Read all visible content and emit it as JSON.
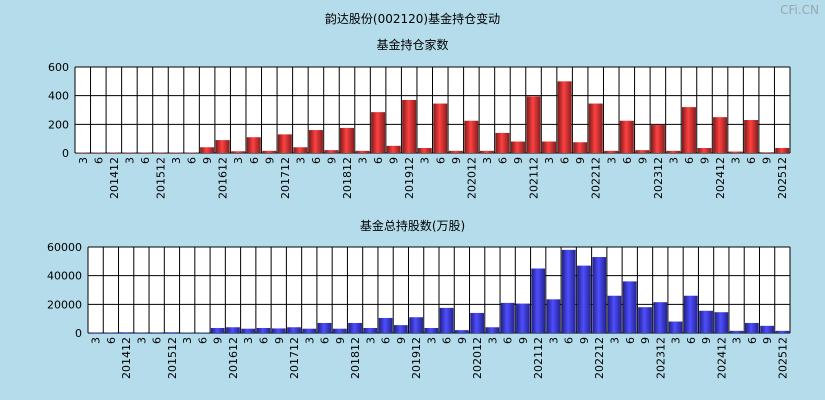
{
  "page": {
    "title": "韵达股份(002120)基金持仓变动",
    "watermark": "CFi.CN"
  },
  "chart_data": [
    {
      "type": "bar",
      "title": "基金持仓家数",
      "ylim": [
        0,
        600
      ],
      "yticks": [
        0,
        200,
        400,
        600
      ],
      "grid": true,
      "color": "#e03030",
      "categories": [
        "3",
        "6",
        "201412",
        "3",
        "6",
        "201512",
        "3",
        "6",
        "9",
        "201612",
        "3",
        "6",
        "9",
        "201712",
        "3",
        "6",
        "9",
        "201812",
        "3",
        "6",
        "9",
        "201912",
        "3",
        "6",
        "9",
        "202012",
        "3",
        "6",
        "9",
        "202112",
        "3",
        "6",
        "9",
        "202212",
        "3",
        "6",
        "9",
        "202312",
        "3",
        "6",
        "9",
        "202412",
        "3",
        "6",
        "9",
        "202512"
      ],
      "values": [
        3,
        3,
        4,
        3,
        3,
        4,
        3,
        3,
        40,
        90,
        12,
        110,
        15,
        130,
        40,
        160,
        20,
        175,
        15,
        285,
        50,
        370,
        35,
        345,
        15,
        225,
        15,
        140,
        80,
        395,
        80,
        500,
        75,
        345,
        15,
        225,
        20,
        195,
        15,
        320,
        35,
        250,
        10,
        230,
        5,
        35
      ]
    },
    {
      "type": "bar",
      "title": "基金总持股数(万股)",
      "ylim": [
        0,
        60000
      ],
      "yticks": [
        0,
        20000,
        40000,
        60000
      ],
      "grid": true,
      "color": "#3a3af0",
      "categories": [
        "3",
        "6",
        "201412",
        "3",
        "6",
        "201512",
        "3",
        "6",
        "9",
        "201612",
        "3",
        "6",
        "9",
        "201712",
        "3",
        "6",
        "9",
        "201812",
        "3",
        "6",
        "9",
        "201912",
        "3",
        "6",
        "9",
        "202012",
        "3",
        "6",
        "9",
        "202112",
        "3",
        "6",
        "9",
        "202212",
        "3",
        "6",
        "9",
        "202312",
        "3",
        "6",
        "9",
        "202412",
        "3",
        "6",
        "9",
        "202512"
      ],
      "values": [
        400,
        400,
        500,
        400,
        400,
        500,
        300,
        300,
        3500,
        4000,
        3000,
        3500,
        3200,
        4000,
        3000,
        7000,
        3000,
        7000,
        3500,
        10500,
        5500,
        11000,
        3500,
        17500,
        2000,
        14000,
        4000,
        21000,
        20500,
        45000,
        23500,
        58000,
        47000,
        53000,
        26000,
        36000,
        18000,
        21500,
        8000,
        26000,
        15500,
        14500,
        1500,
        7000,
        5000,
        1500
      ]
    }
  ]
}
